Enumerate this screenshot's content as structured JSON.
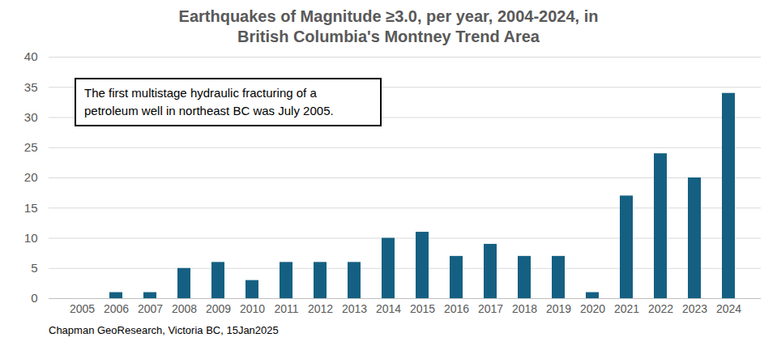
{
  "chart_data": {
    "type": "bar",
    "title": "Earthquakes of Magnitude ≥3.0, per year, 2004-2024, in British Columbia's Montney Trend Area",
    "annotations": [
      "The first multistage hydraulic fracturing of a petroleum well in northeast BC was July 2005."
    ],
    "source": "Chapman GeoResearch, Victoria BC, 15Jan2025",
    "categories": [
      "2005",
      "2006",
      "2007",
      "2008",
      "2009",
      "2010",
      "2011",
      "2012",
      "2013",
      "2014",
      "2015",
      "2016",
      "2017",
      "2018",
      "2019",
      "2020",
      "2021",
      "2022",
      "2023",
      "2024"
    ],
    "values": [
      0,
      1,
      1,
      5,
      6,
      3,
      6,
      6,
      6,
      10,
      11,
      7,
      9,
      7,
      7,
      1,
      17,
      24,
      20,
      34
    ],
    "color": "#156082",
    "ylim": [
      0,
      40
    ],
    "yticks": [
      0,
      5,
      10,
      15,
      20,
      25,
      30,
      35,
      40
    ],
    "grid": true
  }
}
